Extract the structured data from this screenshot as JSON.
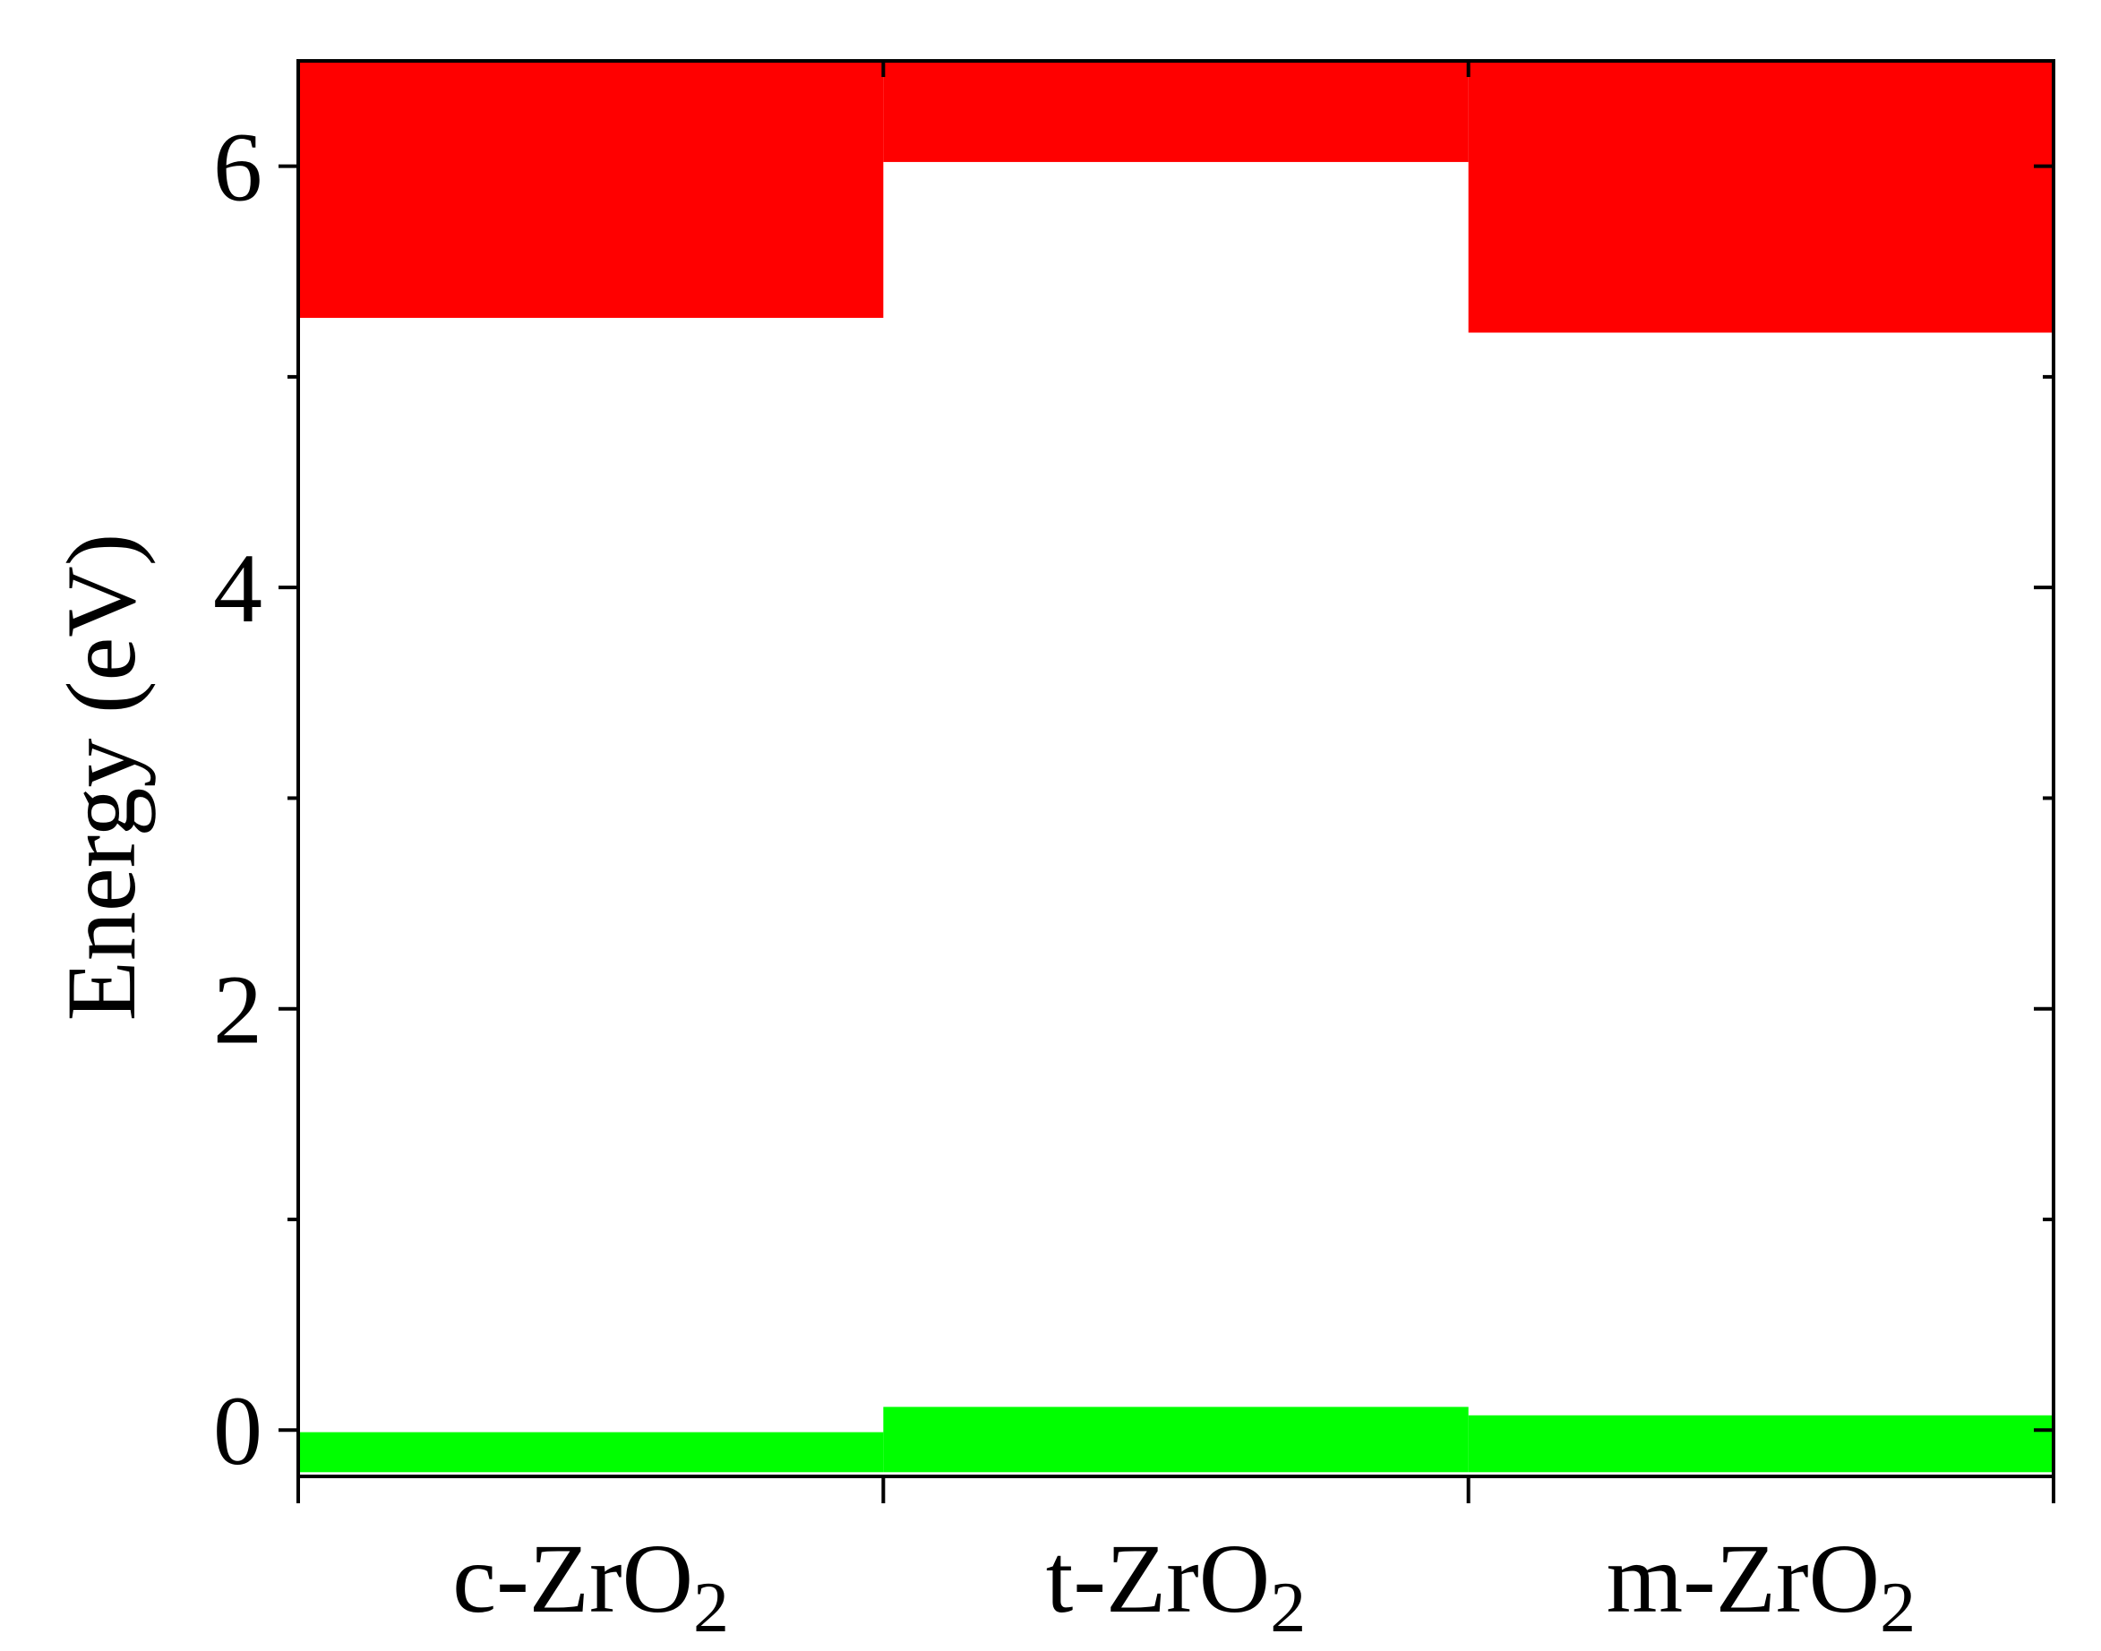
{
  "chart_data": {
    "type": "bar",
    "title": "",
    "xlabel": "",
    "ylabel": "Energy (eV)",
    "ylim": [
      -0.22,
      6.5
    ],
    "yticks_major": [
      0,
      2,
      4,
      6
    ],
    "yticks_major_labels": [
      "0",
      "2",
      "4",
      "6"
    ],
    "yticks_minor": [
      1,
      3,
      5
    ],
    "grid": false,
    "legend": "none",
    "categories": [
      {
        "base": "c-ZrO",
        "sub": "2",
        "label": "c-ZrO2"
      },
      {
        "base": "t-ZrO",
        "sub": "2",
        "label": "t-ZrO2"
      },
      {
        "base": "m-ZrO",
        "sub": "2",
        "label": "m-ZrO2"
      }
    ],
    "series": [
      {
        "role": "conduction band",
        "color": "#ff0000",
        "bottom": [
          5.28,
          6.02,
          5.21
        ],
        "top": [
          6.5,
          6.5,
          6.5
        ]
      },
      {
        "role": "valence band",
        "color": "#00ff00",
        "bottom": [
          -0.2,
          -0.2,
          -0.2
        ],
        "top": [
          -0.01,
          0.11,
          0.07
        ]
      }
    ]
  }
}
